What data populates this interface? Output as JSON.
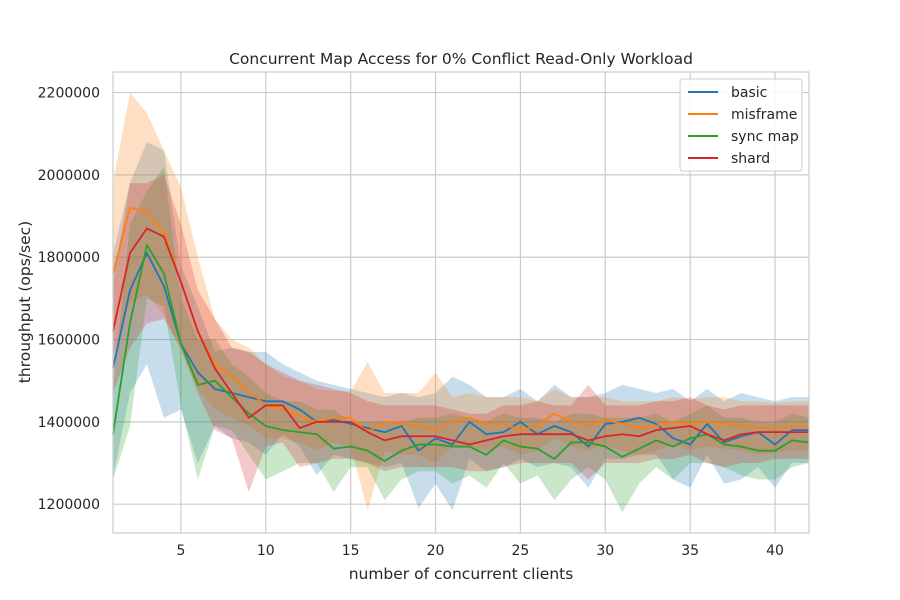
{
  "chart_data": {
    "type": "line",
    "title": "Concurrent Map Access for 0% Conflict Read-Only Workload",
    "xlabel": "number of concurrent clients",
    "ylabel": "throughput (ops/sec)",
    "xlim": [
      1,
      42
    ],
    "ylim": [
      1130000,
      2250000
    ],
    "xticks": [
      5,
      10,
      15,
      20,
      25,
      30,
      35,
      40
    ],
    "yticks": [
      1200000,
      1400000,
      1600000,
      1800000,
      2000000,
      2200000
    ],
    "grid": true,
    "legend_position": "top-right",
    "x": [
      1,
      2,
      3,
      4,
      5,
      6,
      7,
      8,
      9,
      10,
      11,
      12,
      13,
      14,
      15,
      16,
      17,
      18,
      19,
      20,
      21,
      22,
      23,
      24,
      25,
      26,
      27,
      28,
      29,
      30,
      31,
      32,
      33,
      34,
      35,
      36,
      37,
      38,
      39,
      40,
      41,
      42
    ],
    "series": [
      {
        "name": "basic",
        "color": "#1f77b4",
        "values": [
          1530000,
          1720000,
          1810000,
          1730000,
          1590000,
          1520000,
          1480000,
          1470000,
          1460000,
          1450000,
          1450000,
          1430000,
          1400000,
          1405000,
          1395000,
          1385000,
          1375000,
          1390000,
          1330000,
          1360000,
          1345000,
          1400000,
          1370000,
          1375000,
          1400000,
          1370000,
          1390000,
          1375000,
          1340000,
          1395000,
          1400000,
          1410000,
          1395000,
          1360000,
          1345000,
          1395000,
          1350000,
          1365000,
          1375000,
          1345000,
          1380000,
          1380000
        ],
        "lower": [
          1265000,
          1470000,
          1540000,
          1410000,
          1430000,
          1300000,
          1390000,
          1360000,
          1350000,
          1320000,
          1370000,
          1340000,
          1270000,
          1320000,
          1310000,
          1300000,
          1290000,
          1300000,
          1190000,
          1250000,
          1185000,
          1310000,
          1280000,
          1290000,
          1310000,
          1290000,
          1300000,
          1290000,
          1240000,
          1310000,
          1310000,
          1320000,
          1320000,
          1260000,
          1240000,
          1320000,
          1250000,
          1260000,
          1290000,
          1240000,
          1300000,
          1300000
        ],
        "upper": [
          1810000,
          1980000,
          2080000,
          2060000,
          1780000,
          1680000,
          1570000,
          1580000,
          1570000,
          1570000,
          1540000,
          1520000,
          1500000,
          1490000,
          1480000,
          1470000,
          1460000,
          1470000,
          1460000,
          1470000,
          1510000,
          1490000,
          1460000,
          1460000,
          1480000,
          1450000,
          1490000,
          1460000,
          1460000,
          1470000,
          1490000,
          1480000,
          1470000,
          1480000,
          1450000,
          1480000,
          1450000,
          1470000,
          1460000,
          1450000,
          1460000,
          1460000
        ]
      },
      {
        "name": "misframe",
        "color": "#ff7f0e",
        "values": [
          1760000,
          1920000,
          1910000,
          1860000,
          1740000,
          1620000,
          1540000,
          1510000,
          1475000,
          1440000,
          1430000,
          1415000,
          1400000,
          1410000,
          1410000,
          1375000,
          1400000,
          1395000,
          1390000,
          1380000,
          1400000,
          1410000,
          1395000,
          1395000,
          1380000,
          1390000,
          1420000,
          1400000,
          1390000,
          1405000,
          1395000,
          1385000,
          1390000,
          1400000,
          1395000,
          1400000,
          1395000,
          1390000,
          1385000,
          1385000,
          1390000,
          1390000
        ],
        "lower": [
          1560000,
          1690000,
          1710000,
          1660000,
          1570000,
          1480000,
          1430000,
          1410000,
          1390000,
          1360000,
          1360000,
          1350000,
          1330000,
          1350000,
          1340000,
          1185000,
          1330000,
          1320000,
          1320000,
          1300000,
          1340000,
          1340000,
          1330000,
          1340000,
          1320000,
          1330000,
          1360000,
          1340000,
          1330000,
          1345000,
          1330000,
          1320000,
          1330000,
          1345000,
          1330000,
          1340000,
          1335000,
          1330000,
          1320000,
          1325000,
          1330000,
          1330000
        ],
        "upper": [
          1980000,
          2200000,
          2150000,
          2060000,
          1970000,
          1800000,
          1650000,
          1600000,
          1580000,
          1540000,
          1510000,
          1500000,
          1480000,
          1475000,
          1475000,
          1545000,
          1470000,
          1470000,
          1470000,
          1520000,
          1460000,
          1470000,
          1460000,
          1460000,
          1460000,
          1450000,
          1480000,
          1460000,
          1460000,
          1460000,
          1450000,
          1450000,
          1450000,
          1460000,
          1455000,
          1460000,
          1460000,
          1450000,
          1450000,
          1445000,
          1450000,
          1450000
        ]
      },
      {
        "name": "sync map",
        "color": "#2ca02c",
        "values": [
          1370000,
          1640000,
          1830000,
          1760000,
          1590000,
          1490000,
          1500000,
          1460000,
          1420000,
          1390000,
          1380000,
          1375000,
          1370000,
          1335000,
          1340000,
          1330000,
          1305000,
          1330000,
          1345000,
          1345000,
          1340000,
          1340000,
          1320000,
          1355000,
          1340000,
          1335000,
          1310000,
          1350000,
          1350000,
          1340000,
          1315000,
          1335000,
          1355000,
          1340000,
          1360000,
          1370000,
          1345000,
          1340000,
          1330000,
          1330000,
          1355000,
          1350000
        ],
        "lower": [
          1260000,
          1390000,
          1700000,
          1680000,
          1440000,
          1260000,
          1390000,
          1380000,
          1320000,
          1260000,
          1280000,
          1300000,
          1300000,
          1230000,
          1290000,
          1290000,
          1210000,
          1260000,
          1280000,
          1280000,
          1250000,
          1270000,
          1240000,
          1300000,
          1250000,
          1270000,
          1210000,
          1260000,
          1290000,
          1260000,
          1180000,
          1250000,
          1290000,
          1260000,
          1300000,
          1300000,
          1290000,
          1270000,
          1260000,
          1260000,
          1290000,
          1300000
        ],
        "upper": [
          1480000,
          1880000,
          1960000,
          2020000,
          1700000,
          1600000,
          1600000,
          1540000,
          1510000,
          1470000,
          1450000,
          1450000,
          1430000,
          1430000,
          1400000,
          1400000,
          1400000,
          1400000,
          1410000,
          1410000,
          1420000,
          1410000,
          1400000,
          1420000,
          1410000,
          1410000,
          1400000,
          1420000,
          1420000,
          1410000,
          1410000,
          1410000,
          1420000,
          1400000,
          1420000,
          1440000,
          1410000,
          1410000,
          1400000,
          1400000,
          1420000,
          1410000
        ]
      },
      {
        "name": "shard",
        "color": "#d62728",
        "values": [
          1620000,
          1810000,
          1870000,
          1850000,
          1740000,
          1620000,
          1530000,
          1470000,
          1410000,
          1440000,
          1440000,
          1385000,
          1400000,
          1400000,
          1400000,
          1375000,
          1355000,
          1365000,
          1365000,
          1365000,
          1355000,
          1345000,
          1355000,
          1365000,
          1370000,
          1370000,
          1370000,
          1370000,
          1355000,
          1365000,
          1370000,
          1365000,
          1380000,
          1385000,
          1390000,
          1370000,
          1355000,
          1370000,
          1375000,
          1375000,
          1375000,
          1375000
        ],
        "lower": [
          1470000,
          1580000,
          1640000,
          1650000,
          1580000,
          1470000,
          1380000,
          1360000,
          1230000,
          1340000,
          1350000,
          1290000,
          1300000,
          1310000,
          1310000,
          1300000,
          1280000,
          1290000,
          1290000,
          1290000,
          1290000,
          1280000,
          1280000,
          1290000,
          1300000,
          1300000,
          1300000,
          1300000,
          1260000,
          1300000,
          1300000,
          1300000,
          1310000,
          1310000,
          1320000,
          1300000,
          1290000,
          1300000,
          1300000,
          1310000,
          1310000,
          1310000
        ],
        "upper": [
          1740000,
          1980000,
          1980000,
          2000000,
          1880000,
          1720000,
          1650000,
          1580000,
          1570000,
          1540000,
          1520000,
          1500000,
          1490000,
          1480000,
          1470000,
          1450000,
          1440000,
          1440000,
          1440000,
          1440000,
          1430000,
          1420000,
          1420000,
          1440000,
          1440000,
          1450000,
          1440000,
          1440000,
          1490000,
          1440000,
          1440000,
          1440000,
          1450000,
          1450000,
          1460000,
          1440000,
          1430000,
          1440000,
          1440000,
          1440000,
          1440000,
          1440000
        ]
      }
    ]
  }
}
